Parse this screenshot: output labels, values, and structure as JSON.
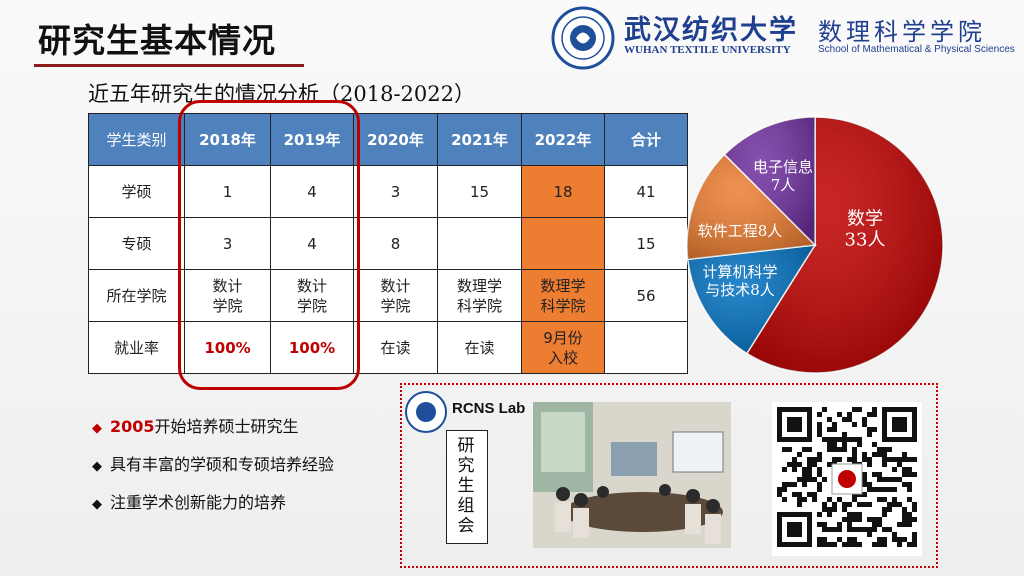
{
  "header": {
    "title": "研究生基本情况",
    "university_cn": "武汉纺织大学",
    "school_cn": "数理科学学院",
    "university_en": "WUHAN TEXTILE UNIVERSITY",
    "school_en": "School of Mathematical & Physical Sciences"
  },
  "subtitle": "近五年研究生的情况分析（2018-2022）",
  "table": {
    "header": [
      "学生类别",
      "2018年",
      "2019年",
      "2020年",
      "2021年",
      "2022年",
      "合计"
    ],
    "rows": [
      [
        "学硕",
        1,
        4,
        3,
        15,
        18,
        41
      ],
      [
        "专硕",
        3,
        4,
        8,
        null,
        null,
        15
      ],
      [
        "所在学院",
        [
          "数计",
          "学院"
        ],
        [
          "数计",
          "学院"
        ],
        [
          "数计",
          "学院"
        ],
        [
          "数理学",
          "科学院"
        ],
        [
          "数理学",
          "科学院"
        ],
        56
      ],
      [
        "就业率",
        "100%",
        "100%",
        "在读",
        "在读",
        [
          "9月份",
          "入校"
        ],
        null
      ]
    ]
  },
  "chart_data": {
    "type": "pie",
    "slices": [
      {
        "lines": [
          "数学",
          "33人"
        ],
        "value": 33,
        "color": "#c00000"
      },
      {
        "lines": [
          "计算机科学",
          "与技术8人"
        ],
        "value": 8,
        "color": "#0070c0"
      },
      {
        "lines": [
          "软件工程8人"
        ],
        "value": 8,
        "color": "#ed7d31"
      },
      {
        "lines": [
          "电子信息",
          "7人"
        ],
        "value": 7,
        "color": "#7030a0"
      }
    ]
  },
  "bullets": [
    {
      "highlight": "2005",
      "text": "开始培养硕士研究生"
    },
    {
      "text": "具有丰富的学硕和专硕培养经验"
    },
    {
      "text": "注重学术创新能力的培养"
    }
  ],
  "lab": {
    "name": "RCNS Lab",
    "group": "研究生组会"
  }
}
